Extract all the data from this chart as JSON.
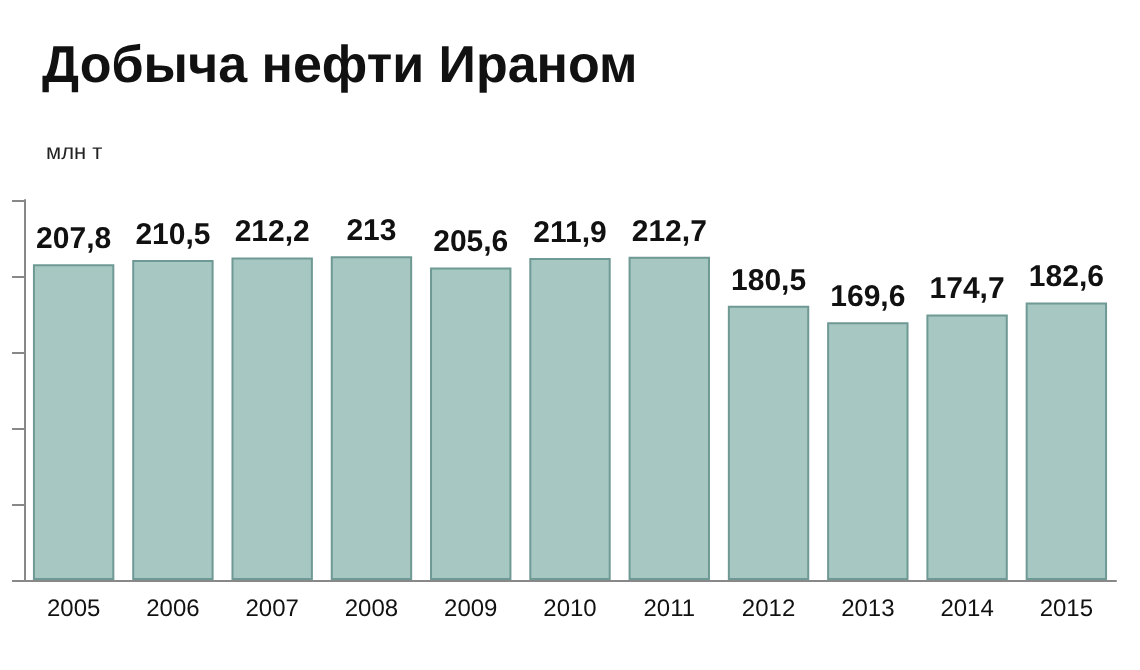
{
  "chart_data": {
    "type": "bar",
    "title": "Добыча нефти Ираном",
    "subtitle": "млн т",
    "categories": [
      "2005",
      "2006",
      "2007",
      "2008",
      "2009",
      "2010",
      "2011",
      "2012",
      "2013",
      "2014",
      "2015"
    ],
    "values": [
      207.8,
      210.5,
      212.2,
      213,
      205.6,
      211.9,
      212.7,
      180.5,
      169.6,
      174.7,
      182.6
    ],
    "value_labels": [
      "207,8",
      "210,5",
      "212,2",
      "213",
      "205,6",
      "211,9",
      "212,7",
      "180,5",
      "169,6",
      "174,7",
      "182,6"
    ],
    "color": "#a7c7c3",
    "relative": false,
    "grid": false
  }
}
